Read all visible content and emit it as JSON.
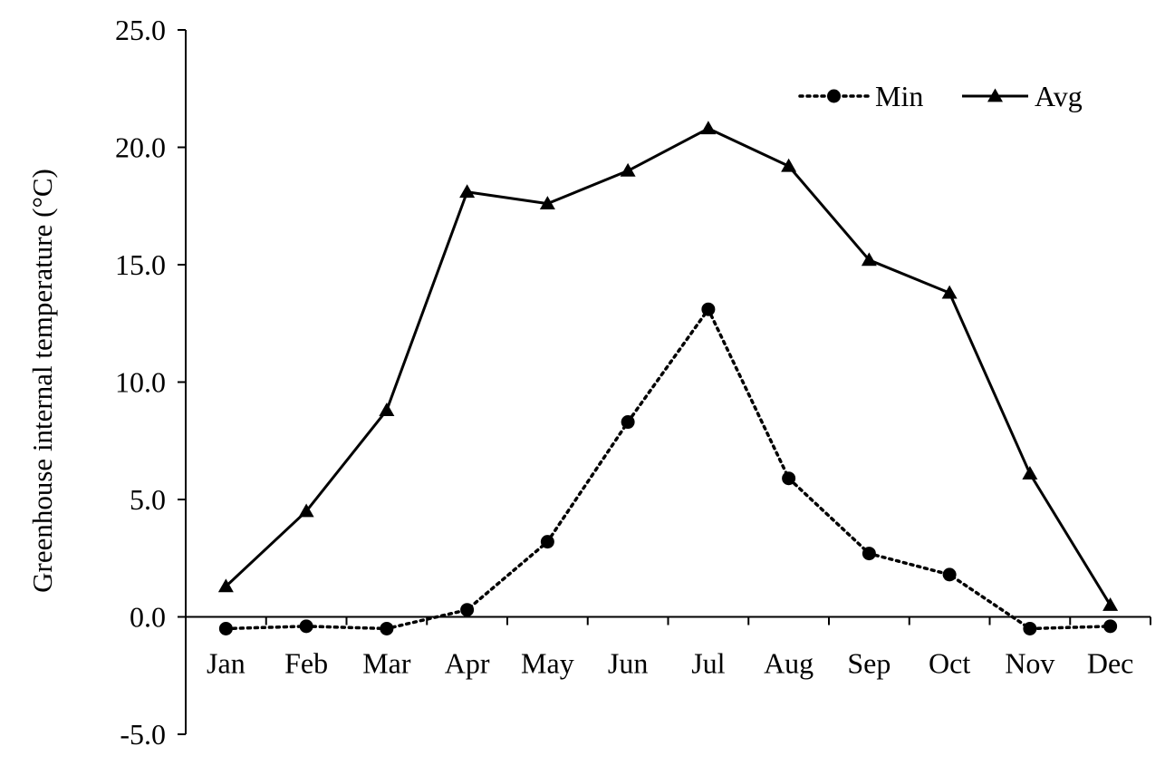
{
  "chart_data": {
    "type": "line",
    "title": "",
    "xlabel": "",
    "ylabel": "Greenhouse internal temperature (°C)",
    "categories": [
      "Jan",
      "Feb",
      "Mar",
      "Apr",
      "May",
      "Jun",
      "Jul",
      "Aug",
      "Sep",
      "Oct",
      "Nov",
      "Dec"
    ],
    "ylim": [
      -5.0,
      25.0
    ],
    "yticks": [
      -5.0,
      0.0,
      5.0,
      10.0,
      15.0,
      20.0,
      25.0
    ],
    "ytick_labels": [
      "-5.0",
      "0.0",
      "5.0",
      "10.0",
      "15.0",
      "20.0",
      "25.0"
    ],
    "grid": false,
    "legend_position": "top-right",
    "series": [
      {
        "name": "Min",
        "line_style": "dotted",
        "marker": "circle",
        "values": [
          -0.5,
          -0.4,
          -0.5,
          0.3,
          3.2,
          8.3,
          13.1,
          5.9,
          2.7,
          1.8,
          -0.5,
          -0.4
        ]
      },
      {
        "name": "Avg",
        "line_style": "solid",
        "marker": "triangle",
        "values": [
          1.3,
          4.5,
          8.8,
          18.1,
          17.6,
          19.0,
          20.8,
          19.2,
          15.2,
          13.8,
          6.1,
          0.5
        ]
      }
    ],
    "colors": {
      "line": "#000000",
      "background": "#ffffff"
    }
  }
}
